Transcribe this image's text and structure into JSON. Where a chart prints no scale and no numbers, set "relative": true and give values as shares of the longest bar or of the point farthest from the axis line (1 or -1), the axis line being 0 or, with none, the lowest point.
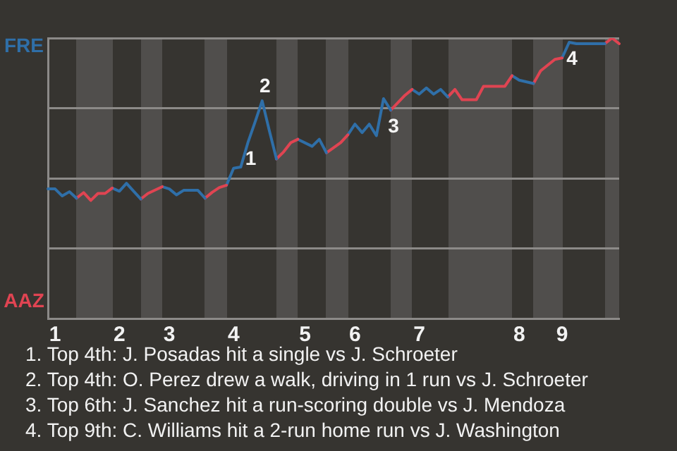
{
  "chart_data": {
    "type": "line",
    "relative": true,
    "categories": [
      null,
      "1",
      null,
      null,
      null,
      null,
      null,
      null,
      null,
      null,
      "2",
      null,
      null,
      null,
      null,
      null,
      null,
      "3",
      null,
      null,
      null,
      null,
      null,
      null,
      null,
      null,
      "4",
      null,
      null,
      null,
      null,
      null,
      null,
      null,
      null,
      null,
      "5",
      null,
      null,
      null,
      null,
      null,
      null,
      "6",
      null,
      null,
      null,
      null,
      null,
      null,
      null,
      null,
      "7",
      null,
      null,
      null,
      null,
      null,
      null,
      null,
      null,
      null,
      null,
      null,
      null,
      null,
      "8",
      null,
      null,
      null,
      null,
      null,
      "9",
      null,
      null,
      null,
      null,
      null,
      null,
      null,
      null
    ],
    "series": [
      {
        "color": "#2f6fa8",
        "values": [
          0.462,
          0.462,
          0.437,
          0.452,
          0.429,
          null,
          null,
          null,
          null,
          null,
          null,
          null,
          null,
          null,
          null,
          null,
          null,
          null,
          null,
          null,
          null,
          null,
          null,
          null,
          null,
          null,
          null,
          null,
          null,
          null,
          null,
          null,
          null,
          null,
          null,
          null,
          null,
          null,
          null,
          null,
          null,
          null,
          null,
          null,
          null,
          null,
          null,
          null,
          null,
          null,
          null,
          null,
          null,
          null,
          null,
          null,
          null,
          null,
          null,
          null,
          null,
          null,
          null,
          null,
          null,
          null,
          null,
          null,
          null,
          null,
          null,
          null,
          null,
          null,
          null,
          null,
          null,
          null,
          null,
          null,
          null
        ]
      },
      {
        "color": "#e04452",
        "values": [
          null,
          null,
          null,
          null,
          0.429,
          0.449,
          0.421,
          0.446,
          0.446,
          0.465,
          null,
          null,
          null,
          null,
          null,
          null,
          null,
          null,
          null,
          null,
          null,
          null,
          null,
          null,
          null,
          null,
          null,
          null,
          null,
          null,
          null,
          null,
          null,
          null,
          null,
          null,
          null,
          null,
          null,
          null,
          null,
          null,
          null,
          null,
          null,
          null,
          null,
          null,
          null,
          null,
          null,
          null,
          null,
          null,
          null,
          null,
          null,
          null,
          null,
          null,
          null,
          null,
          null,
          null,
          null,
          null,
          null,
          null,
          null,
          null,
          null,
          null,
          null,
          null,
          null,
          null,
          null,
          null,
          null,
          null,
          null
        ]
      },
      {
        "color": "#2f6fa8",
        "values": [
          null,
          null,
          null,
          null,
          null,
          null,
          null,
          null,
          null,
          0.465,
          0.454,
          0.482,
          0.454,
          0.426,
          null,
          null,
          null,
          null,
          null,
          null,
          null,
          null,
          null,
          null,
          null,
          null,
          null,
          null,
          null,
          null,
          null,
          null,
          null,
          null,
          null,
          null,
          null,
          null,
          null,
          null,
          null,
          null,
          null,
          null,
          null,
          null,
          null,
          null,
          null,
          null,
          null,
          null,
          null,
          null,
          null,
          null,
          null,
          null,
          null,
          null,
          null,
          null,
          null,
          null,
          null,
          null,
          null,
          null,
          null,
          null,
          null,
          null,
          null,
          null,
          null,
          null,
          null,
          null,
          null,
          null,
          null
        ]
      },
      {
        "color": "#e04452",
        "values": [
          null,
          null,
          null,
          null,
          null,
          null,
          null,
          null,
          null,
          null,
          null,
          null,
          null,
          0.426,
          0.446,
          null,
          0.47,
          null,
          null,
          null,
          null,
          null,
          null,
          null,
          null,
          null,
          null,
          null,
          null,
          null,
          null,
          null,
          null,
          null,
          null,
          null,
          null,
          null,
          null,
          null,
          null,
          null,
          null,
          null,
          null,
          null,
          null,
          null,
          null,
          null,
          null,
          null,
          null,
          null,
          null,
          null,
          null,
          null,
          null,
          null,
          null,
          null,
          null,
          null,
          null,
          null,
          null,
          null,
          null,
          null,
          null,
          null,
          null,
          null,
          null,
          null,
          null,
          null,
          null,
          null,
          null
        ]
      },
      {
        "color": "#2f6fa8",
        "values": [
          null,
          null,
          null,
          null,
          null,
          null,
          null,
          null,
          null,
          null,
          null,
          null,
          null,
          null,
          null,
          null,
          0.47,
          0.462,
          0.441,
          0.457,
          null,
          0.457,
          0.429,
          null,
          null,
          null,
          null,
          null,
          null,
          null,
          null,
          null,
          null,
          null,
          null,
          null,
          null,
          null,
          null,
          null,
          null,
          null,
          null,
          null,
          null,
          null,
          null,
          null,
          null,
          null,
          null,
          null,
          null,
          null,
          null,
          null,
          null,
          null,
          null,
          null,
          null,
          null,
          null,
          null,
          null,
          null,
          null,
          null,
          null,
          null,
          null,
          null,
          null,
          null,
          null,
          null,
          null,
          null,
          null,
          null,
          null
        ]
      },
      {
        "color": "#e04452",
        "values": [
          null,
          null,
          null,
          null,
          null,
          null,
          null,
          null,
          null,
          null,
          null,
          null,
          null,
          null,
          null,
          null,
          null,
          null,
          null,
          null,
          null,
          null,
          0.429,
          0.45,
          0.467,
          0.475,
          null,
          null,
          null,
          null,
          null,
          null,
          null,
          null,
          null,
          null,
          null,
          null,
          null,
          null,
          null,
          null,
          null,
          null,
          null,
          null,
          null,
          null,
          null,
          null,
          null,
          null,
          null,
          null,
          null,
          null,
          null,
          null,
          null,
          null,
          null,
          null,
          null,
          null,
          null,
          null,
          null,
          null,
          null,
          null,
          null,
          null,
          null,
          null,
          null,
          null,
          null,
          null,
          null,
          null,
          null
        ]
      },
      {
        "color": "#2f6fa8",
        "values": [
          null,
          null,
          null,
          null,
          null,
          null,
          null,
          null,
          null,
          null,
          null,
          null,
          null,
          null,
          null,
          null,
          null,
          null,
          null,
          null,
          null,
          null,
          null,
          null,
          null,
          0.475,
          0.536,
          0.54,
          0.627,
          0.7,
          0.776,
          0.67,
          0.569,
          null,
          null,
          null,
          null,
          null,
          null,
          null,
          null,
          null,
          null,
          null,
          null,
          null,
          null,
          null,
          null,
          null,
          null,
          null,
          null,
          null,
          null,
          null,
          null,
          null,
          null,
          null,
          null,
          null,
          null,
          null,
          null,
          null,
          null,
          null,
          null,
          null,
          null,
          null,
          null,
          null,
          null,
          null,
          null,
          null,
          null,
          null,
          null
        ]
      },
      {
        "color": "#e04452",
        "values": [
          null,
          null,
          null,
          null,
          null,
          null,
          null,
          null,
          null,
          null,
          null,
          null,
          null,
          null,
          null,
          null,
          null,
          null,
          null,
          null,
          null,
          null,
          null,
          null,
          null,
          null,
          null,
          null,
          null,
          null,
          null,
          null,
          0.569,
          0.594,
          0.627,
          0.639,
          null,
          null,
          null,
          null,
          null,
          null,
          null,
          null,
          null,
          null,
          null,
          null,
          null,
          null,
          null,
          null,
          null,
          null,
          null,
          null,
          null,
          null,
          null,
          null,
          null,
          null,
          null,
          null,
          null,
          null,
          null,
          null,
          null,
          null,
          null,
          null,
          null,
          null,
          null,
          null,
          null,
          null,
          null,
          null,
          null
        ]
      },
      {
        "color": "#2f6fa8",
        "values": [
          null,
          null,
          null,
          null,
          null,
          null,
          null,
          null,
          null,
          null,
          null,
          null,
          null,
          null,
          null,
          null,
          null,
          null,
          null,
          null,
          null,
          null,
          null,
          null,
          null,
          null,
          null,
          null,
          null,
          null,
          null,
          null,
          null,
          null,
          null,
          0.639,
          null,
          0.614,
          0.639,
          0.591,
          null,
          null,
          null,
          null,
          null,
          null,
          null,
          null,
          null,
          null,
          null,
          null,
          null,
          null,
          null,
          null,
          null,
          null,
          null,
          null,
          null,
          null,
          null,
          null,
          null,
          null,
          null,
          null,
          null,
          null,
          null,
          null,
          null,
          null,
          null,
          null,
          null,
          null,
          null,
          null,
          null
        ]
      },
      {
        "color": "#e04452",
        "values": [
          null,
          null,
          null,
          null,
          null,
          null,
          null,
          null,
          null,
          null,
          null,
          null,
          null,
          null,
          null,
          null,
          null,
          null,
          null,
          null,
          null,
          null,
          null,
          null,
          null,
          null,
          null,
          null,
          null,
          null,
          null,
          null,
          null,
          null,
          null,
          null,
          null,
          null,
          null,
          0.591,
          null,
          0.627,
          0.655,
          null,
          null,
          null,
          null,
          null,
          null,
          null,
          null,
          null,
          null,
          null,
          null,
          null,
          null,
          null,
          null,
          null,
          null,
          null,
          null,
          null,
          null,
          null,
          null,
          null,
          null,
          null,
          null,
          null,
          null,
          null,
          null,
          null,
          null,
          null,
          null,
          null,
          null
        ]
      },
      {
        "color": "#2f6fa8",
        "values": [
          null,
          null,
          null,
          null,
          null,
          null,
          null,
          null,
          null,
          null,
          null,
          null,
          null,
          null,
          null,
          null,
          null,
          null,
          null,
          null,
          null,
          null,
          null,
          null,
          null,
          null,
          null,
          null,
          null,
          null,
          null,
          null,
          null,
          null,
          null,
          null,
          null,
          null,
          null,
          null,
          null,
          null,
          0.655,
          0.693,
          0.663,
          0.693,
          0.652,
          0.784,
          0.743,
          null,
          null,
          null,
          null,
          null,
          null,
          null,
          null,
          null,
          null,
          null,
          null,
          null,
          null,
          null,
          null,
          null,
          null,
          null,
          null,
          null,
          null,
          null,
          null,
          null,
          null,
          null,
          null,
          null,
          null,
          null,
          null
        ]
      },
      {
        "color": "#e04452",
        "values": [
          null,
          null,
          null,
          null,
          null,
          null,
          null,
          null,
          null,
          null,
          null,
          null,
          null,
          null,
          null,
          null,
          null,
          null,
          null,
          null,
          null,
          null,
          null,
          null,
          null,
          null,
          null,
          null,
          null,
          null,
          null,
          null,
          null,
          null,
          null,
          null,
          null,
          null,
          null,
          null,
          null,
          null,
          null,
          null,
          null,
          null,
          null,
          null,
          0.743,
          null,
          0.796,
          0.817,
          null,
          null,
          null,
          null,
          null,
          null,
          null,
          null,
          null,
          null,
          null,
          null,
          null,
          null,
          null,
          null,
          null,
          null,
          null,
          null,
          null,
          null,
          null,
          null,
          null,
          null,
          null,
          null,
          null
        ]
      },
      {
        "color": "#2f6fa8",
        "values": [
          null,
          null,
          null,
          null,
          null,
          null,
          null,
          null,
          null,
          null,
          null,
          null,
          null,
          null,
          null,
          null,
          null,
          null,
          null,
          null,
          null,
          null,
          null,
          null,
          null,
          null,
          null,
          null,
          null,
          null,
          null,
          null,
          null,
          null,
          null,
          null,
          null,
          null,
          null,
          null,
          null,
          null,
          null,
          null,
          null,
          null,
          null,
          null,
          null,
          null,
          null,
          0.817,
          0.8,
          0.822,
          0.8,
          0.817,
          0.79,
          null,
          null,
          null,
          null,
          null,
          null,
          null,
          null,
          null,
          null,
          null,
          null,
          null,
          null,
          null,
          null,
          null,
          null,
          null,
          null,
          null,
          null,
          null,
          null
        ]
      },
      {
        "color": "#e04452",
        "values": [
          null,
          null,
          null,
          null,
          null,
          null,
          null,
          null,
          null,
          null,
          null,
          null,
          null,
          null,
          null,
          null,
          null,
          null,
          null,
          null,
          null,
          null,
          null,
          null,
          null,
          null,
          null,
          null,
          null,
          null,
          null,
          null,
          null,
          null,
          null,
          null,
          null,
          null,
          null,
          null,
          null,
          null,
          null,
          null,
          null,
          null,
          null,
          null,
          null,
          null,
          null,
          null,
          null,
          null,
          null,
          null,
          0.79,
          0.817,
          0.78,
          null,
          0.78,
          0.828,
          null,
          null,
          0.828,
          0.866,
          null,
          null,
          null,
          null,
          null,
          null,
          null,
          null,
          null,
          null,
          null,
          null,
          null,
          null,
          null
        ]
      },
      {
        "color": "#2f6fa8",
        "values": [
          null,
          null,
          null,
          null,
          null,
          null,
          null,
          null,
          null,
          null,
          null,
          null,
          null,
          null,
          null,
          null,
          null,
          null,
          null,
          null,
          null,
          null,
          null,
          null,
          null,
          null,
          null,
          null,
          null,
          null,
          null,
          null,
          null,
          null,
          null,
          null,
          null,
          null,
          null,
          null,
          null,
          null,
          null,
          null,
          null,
          null,
          null,
          null,
          null,
          null,
          null,
          null,
          null,
          null,
          null,
          null,
          null,
          null,
          null,
          null,
          null,
          null,
          null,
          null,
          null,
          0.866,
          0.85,
          null,
          0.838,
          null,
          null,
          null,
          null,
          null,
          null,
          null,
          null,
          null,
          null,
          null,
          null
        ]
      },
      {
        "color": "#e04452",
        "values": [
          null,
          null,
          null,
          null,
          null,
          null,
          null,
          null,
          null,
          null,
          null,
          null,
          null,
          null,
          null,
          null,
          null,
          null,
          null,
          null,
          null,
          null,
          null,
          null,
          null,
          null,
          null,
          null,
          null,
          null,
          null,
          null,
          null,
          null,
          null,
          null,
          null,
          null,
          null,
          null,
          null,
          null,
          null,
          null,
          null,
          null,
          null,
          null,
          null,
          null,
          null,
          null,
          null,
          null,
          null,
          null,
          null,
          null,
          null,
          null,
          null,
          null,
          null,
          null,
          null,
          null,
          null,
          null,
          0.838,
          0.883,
          null,
          0.924,
          0.929,
          null,
          null,
          null,
          null,
          null,
          null,
          null,
          null
        ]
      },
      {
        "color": "#2f6fa8",
        "values": [
          null,
          null,
          null,
          null,
          null,
          null,
          null,
          null,
          null,
          null,
          null,
          null,
          null,
          null,
          null,
          null,
          null,
          null,
          null,
          null,
          null,
          null,
          null,
          null,
          null,
          null,
          null,
          null,
          null,
          null,
          null,
          null,
          null,
          null,
          null,
          null,
          null,
          null,
          null,
          null,
          null,
          null,
          null,
          null,
          null,
          null,
          null,
          null,
          null,
          null,
          null,
          null,
          null,
          null,
          null,
          null,
          null,
          null,
          null,
          null,
          null,
          null,
          null,
          null,
          null,
          null,
          null,
          null,
          null,
          null,
          null,
          null,
          0.929,
          0.985,
          0.98,
          null,
          null,
          null,
          0.98,
          null,
          null
        ]
      },
      {
        "color": "#e04452",
        "values": [
          null,
          null,
          null,
          null,
          null,
          null,
          null,
          null,
          null,
          null,
          null,
          null,
          null,
          null,
          null,
          null,
          null,
          null,
          null,
          null,
          null,
          null,
          null,
          null,
          null,
          null,
          null,
          null,
          null,
          null,
          null,
          null,
          null,
          null,
          null,
          null,
          null,
          null,
          null,
          null,
          null,
          null,
          null,
          null,
          null,
          null,
          null,
          null,
          null,
          null,
          null,
          null,
          null,
          null,
          null,
          null,
          null,
          null,
          null,
          null,
          null,
          null,
          null,
          null,
          null,
          null,
          null,
          null,
          null,
          null,
          null,
          null,
          null,
          null,
          null,
          null,
          null,
          null,
          0.98,
          1.0,
          0.98
        ]
      }
    ],
    "annotations": [
      {
        "text": "1",
        "y": 0.627
      },
      {
        "text": "2",
        "y": 0.776
      },
      {
        "text": "3",
        "y": 0.743
      },
      {
        "text": "4",
        "y": 0.985
      },
      "FRE",
      "AAZ",
      "1. Top 4th: J. Posadas hit a single vs J. Schroeter",
      "2. Top 4th: O. Perez drew a walk, driving in 1 run vs J. Schroeter",
      "3. Top 6th: J. Sanchez hit a run-scoring double vs J. Mendoza",
      "4. Top 9th: C. Williams hit a 2-run home run vs J. Washington"
    ],
    "grid": "y",
    "legend": false,
    "marker": "none",
    "line_style": "solid"
  }
}
